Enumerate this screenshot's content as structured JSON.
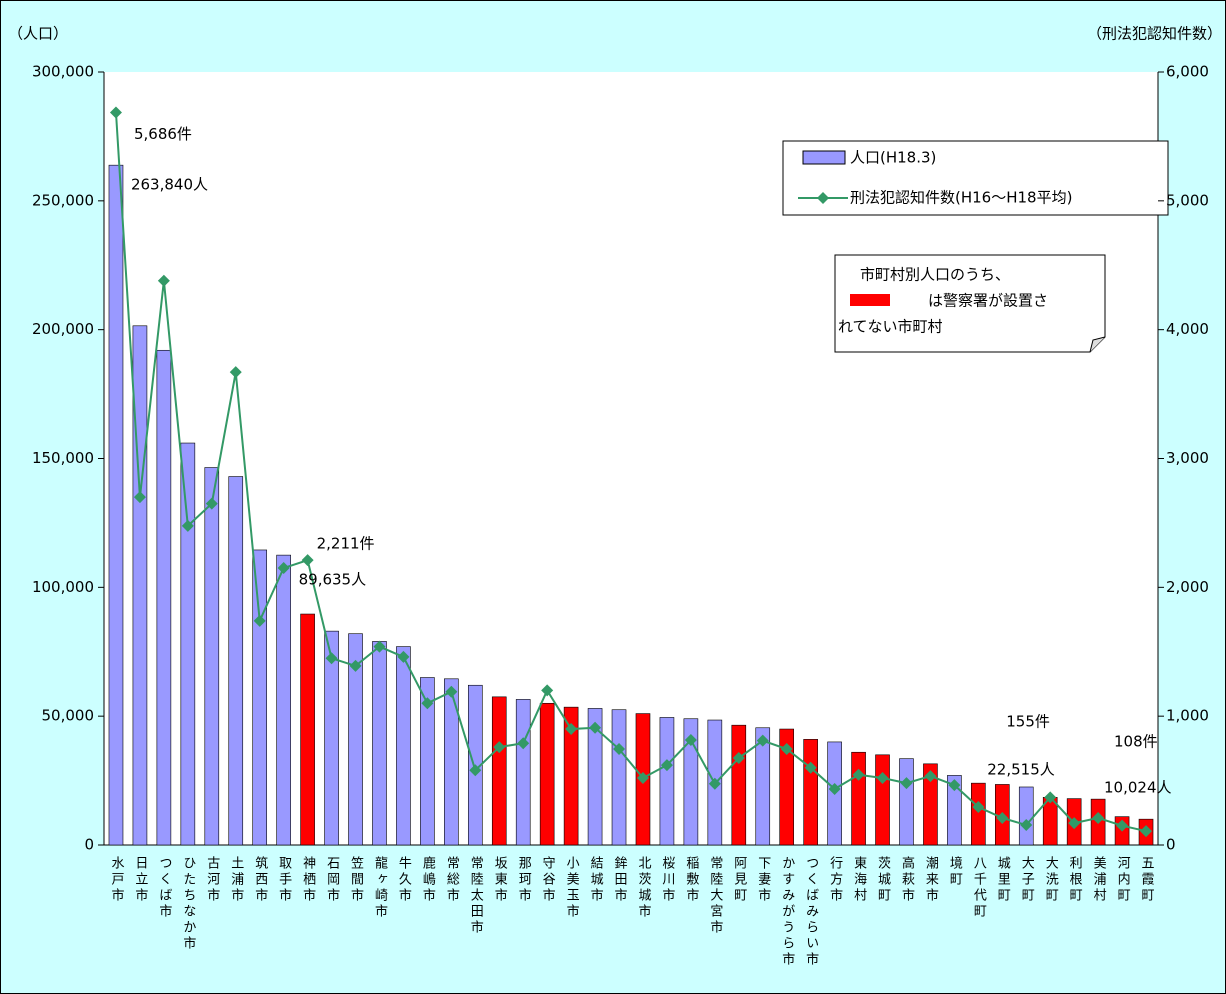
{
  "chart_data": {
    "type": "bar_line",
    "y_label": "（人口）",
    "y2_label": "（刑法犯認知件数）",
    "categories": [
      "水戸市",
      "日立市",
      "つくば市",
      "ひたちなか市",
      "古河市",
      "土浦市",
      "筑西市",
      "取手市",
      "神栖市",
      "石岡市",
      "笠間市",
      "龍ヶ崎市",
      "牛久市",
      "鹿嶋市",
      "常総市",
      "常陸太田市",
      "坂東市",
      "那珂市",
      "守谷市",
      "小美玉市",
      "結城市",
      "鉾田市",
      "北茨城市",
      "桜川市",
      "稲敷市",
      "常陸大宮市",
      "阿見町",
      "下妻市",
      "かすみがうら市",
      "つくばみらい市",
      "行方市",
      "東海村",
      "茨城町",
      "高萩市",
      "潮来市",
      "境町",
      "八千代町",
      "城里町",
      "大子町",
      "大洗町",
      "利根町",
      "美浦村",
      "河内町",
      "五霞町"
    ],
    "series": [
      {
        "name": "人口(H18.3)",
        "type": "bar",
        "color": "#9999ff",
        "colors": [
          "#9999ff",
          "#9999ff",
          "#9999ff",
          "#9999ff",
          "#9999ff",
          "#9999ff",
          "#9999ff",
          "#9999ff",
          "#ff0000",
          "#9999ff",
          "#9999ff",
          "#9999ff",
          "#9999ff",
          "#9999ff",
          "#9999ff",
          "#9999ff",
          "#ff0000",
          "#9999ff",
          "#ff0000",
          "#ff0000",
          "#9999ff",
          "#9999ff",
          "#ff0000",
          "#9999ff",
          "#9999ff",
          "#9999ff",
          "#ff0000",
          "#9999ff",
          "#ff0000",
          "#ff0000",
          "#9999ff",
          "#ff0000",
          "#ff0000",
          "#9999ff",
          "#ff0000",
          "#9999ff",
          "#ff0000",
          "#ff0000",
          "#9999ff",
          "#ff0000",
          "#ff0000",
          "#ff0000",
          "#ff0000",
          "#ff0000"
        ],
        "values": [
          263840,
          201500,
          192000,
          156000,
          146500,
          143000,
          114500,
          112500,
          89635,
          83000,
          82000,
          79000,
          77000,
          65000,
          64500,
          62000,
          57500,
          56500,
          55000,
          53500,
          53000,
          52500,
          51000,
          49500,
          49000,
          48500,
          46500,
          45500,
          45000,
          41000,
          40000,
          36000,
          35000,
          33500,
          31500,
          27000,
          24000,
          23500,
          22515,
          18500,
          18000,
          17800,
          11000,
          10024
        ],
        "value_labels": [
          "263,840人",
          null,
          null,
          null,
          null,
          null,
          null,
          null,
          "89,635人",
          null,
          null,
          null,
          null,
          null,
          null,
          null,
          null,
          null,
          null,
          null,
          null,
          null,
          null,
          null,
          null,
          null,
          null,
          null,
          null,
          null,
          null,
          null,
          null,
          null,
          null,
          null,
          null,
          null,
          "22,515人",
          null,
          null,
          null,
          null,
          "10,024人"
        ]
      },
      {
        "name": "刑法犯認知件数(H16～H18平均)",
        "type": "line",
        "axis": "y2",
        "color": "#339966",
        "values": [
          5686,
          2700,
          4380,
          2477,
          2650,
          3670,
          1740,
          2150,
          2211,
          1450,
          1390,
          1540,
          1460,
          1100,
          1190,
          580,
          760,
          790,
          1200,
          900,
          910,
          745,
          520,
          620,
          815,
          475,
          675,
          810,
          745,
          600,
          435,
          545,
          520,
          480,
          535,
          465,
          295,
          210,
          155,
          370,
          170,
          210,
          150,
          108
        ],
        "value_labels": [
          "5,686件",
          null,
          null,
          null,
          null,
          null,
          null,
          null,
          "2,211件",
          null,
          null,
          null,
          null,
          null,
          null,
          null,
          null,
          null,
          null,
          null,
          null,
          null,
          null,
          null,
          null,
          null,
          null,
          null,
          null,
          null,
          null,
          null,
          null,
          null,
          null,
          null,
          null,
          null,
          "155件",
          null,
          null,
          null,
          null,
          "108件"
        ]
      }
    ],
    "ylim": [
      0,
      300000
    ],
    "yticks": [
      0,
      {
        "value": 50000,
        "label": "50,000"
      },
      {
        "value": 100000,
        "label": "100,000"
      },
      {
        "value": 150000,
        "label": "150,000"
      },
      {
        "value": 200000,
        "label": "200,000"
      },
      {
        "value": 250000,
        "label": "250,000"
      },
      {
        "value": 300000,
        "label": "300,000"
      }
    ],
    "y2lim": [
      0,
      6000
    ],
    "y2ticks": [
      0,
      {
        "value": 1000,
        "label": "1,000"
      },
      {
        "value": 2000,
        "label": "2,000"
      },
      {
        "value": 3000,
        "label": "3,000"
      },
      {
        "value": 4000,
        "label": "4,000"
      },
      {
        "value": 5000,
        "label": "5,000"
      },
      {
        "value": 6000,
        "label": "6,000"
      }
    ],
    "note": [
      "市町村別人口のうち、",
      "は警察署が設置さ",
      "れてない市町村"
    ],
    "grid": false
  }
}
